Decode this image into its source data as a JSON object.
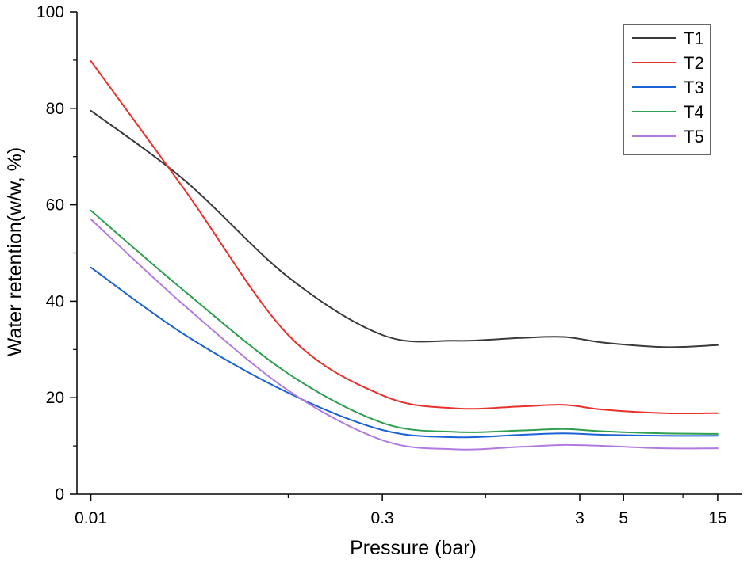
{
  "chart_data": {
    "type": "line",
    "title": "",
    "xlabel": "Pressure (bar)",
    "ylabel": "Water retention(w/w, %)",
    "xscale": "log",
    "xlim": [
      0.0085,
      20
    ],
    "ylim": [
      0,
      100
    ],
    "xticks": [
      {
        "value": 0.01,
        "label": "0.01"
      },
      {
        "value": 0.3,
        "label": "0.3"
      },
      {
        "value": 3,
        "label": "3"
      },
      {
        "value": 5,
        "label": "5"
      },
      {
        "value": 15,
        "label": "15"
      }
    ],
    "yticks": [
      {
        "value": 0,
        "label": "0"
      },
      {
        "value": 20,
        "label": "20"
      },
      {
        "value": 40,
        "label": "40"
      },
      {
        "value": 60,
        "label": "60"
      },
      {
        "value": 80,
        "label": "80"
      },
      {
        "value": 100,
        "label": "100"
      }
    ],
    "legend_position": "top-right",
    "series": [
      {
        "name": "T1",
        "color": "#3a3a3a",
        "x": [
          0.01,
          0.03,
          0.1,
          0.3,
          0.7,
          1.5,
          2.5,
          4,
          8,
          15
        ],
        "y": [
          79.5,
          65,
          45,
          33,
          31.8,
          32.4,
          32.6,
          31.4,
          30.5,
          30.9
        ]
      },
      {
        "name": "T2",
        "color": "#e8312b",
        "x": [
          0.01,
          0.03,
          0.1,
          0.3,
          0.7,
          1.5,
          2.5,
          4,
          8,
          15
        ],
        "y": [
          89.8,
          63,
          33,
          20.5,
          17.8,
          18.2,
          18.5,
          17.5,
          16.8,
          16.8
        ]
      },
      {
        "name": "T3",
        "color": "#1a63d6",
        "x": [
          0.01,
          0.03,
          0.1,
          0.3,
          0.7,
          1.5,
          2.5,
          4,
          8,
          15
        ],
        "y": [
          47,
          33,
          21,
          13.3,
          11.8,
          12.3,
          12.6,
          12.3,
          12.1,
          12.1
        ]
      },
      {
        "name": "T4",
        "color": "#2e9e4f",
        "x": [
          0.01,
          0.03,
          0.1,
          0.3,
          0.7,
          1.5,
          2.5,
          4,
          8,
          15
        ],
        "y": [
          58.8,
          42,
          25,
          14.8,
          12.9,
          13.2,
          13.5,
          13,
          12.6,
          12.5
        ]
      },
      {
        "name": "T5",
        "color": "#b07ae0",
        "x": [
          0.01,
          0.03,
          0.1,
          0.3,
          0.7,
          1.5,
          2.5,
          4,
          8,
          15
        ],
        "y": [
          57,
          39,
          21.5,
          11.2,
          9.3,
          9.8,
          10.2,
          10,
          9.5,
          9.5
        ]
      }
    ]
  }
}
